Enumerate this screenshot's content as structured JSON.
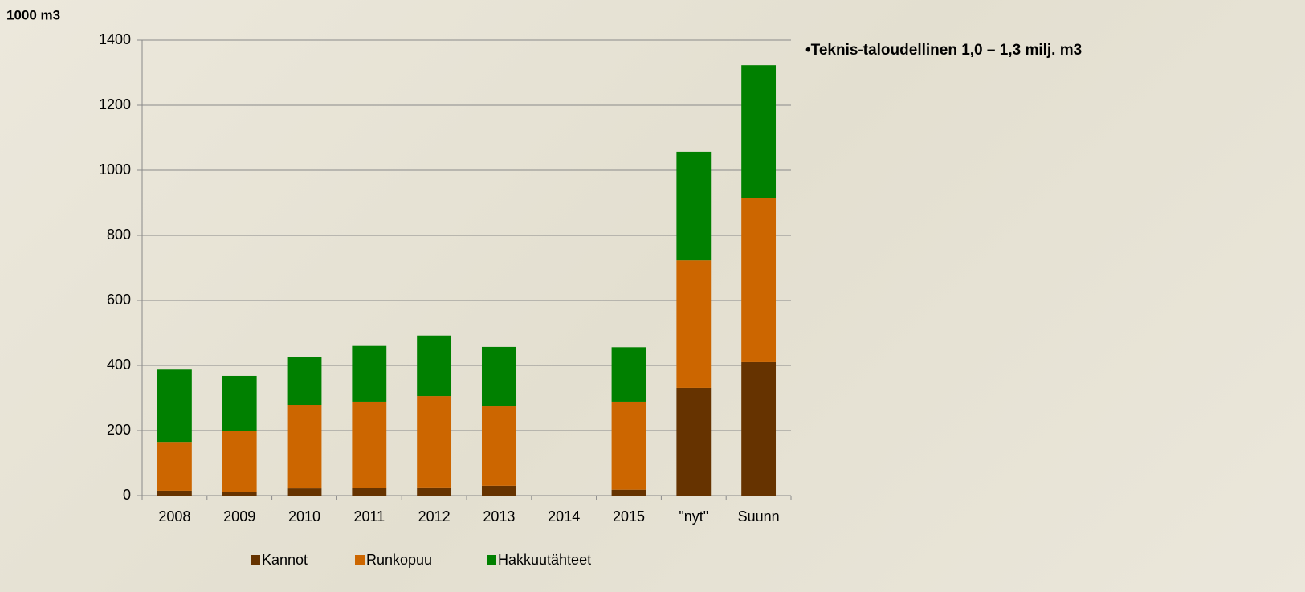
{
  "chart_data": {
    "type": "stacked_bar",
    "y_label": "1000 m3",
    "annotation": "•Teknis-taloudellinen 1,0 – 1,3 milj. m3",
    "categories": [
      "2008",
      "2009",
      "2010",
      "2011",
      "2012",
      "2013",
      "2014",
      "2015",
      "\"nyt\"",
      "Suunn"
    ],
    "series": [
      {
        "name": "Kannot",
        "color": "#663300",
        "values": [
          15,
          10,
          22,
          24,
          25,
          30,
          null,
          18,
          331,
          410
        ]
      },
      {
        "name": "Runkopuu",
        "color": "#cc6600",
        "values": [
          150,
          190,
          257,
          265,
          281,
          244,
          null,
          271,
          392,
          504
        ]
      },
      {
        "name": "Hakkuutähteet",
        "color": "#008000",
        "values": [
          222,
          168,
          146,
          171,
          186,
          183,
          null,
          167,
          334,
          409
        ]
      }
    ],
    "ylim": [
      0,
      1400
    ],
    "yticks": [
      0,
      200,
      400,
      600,
      800,
      1000,
      1200,
      1400
    ],
    "grid": true,
    "legend": "bottom"
  }
}
